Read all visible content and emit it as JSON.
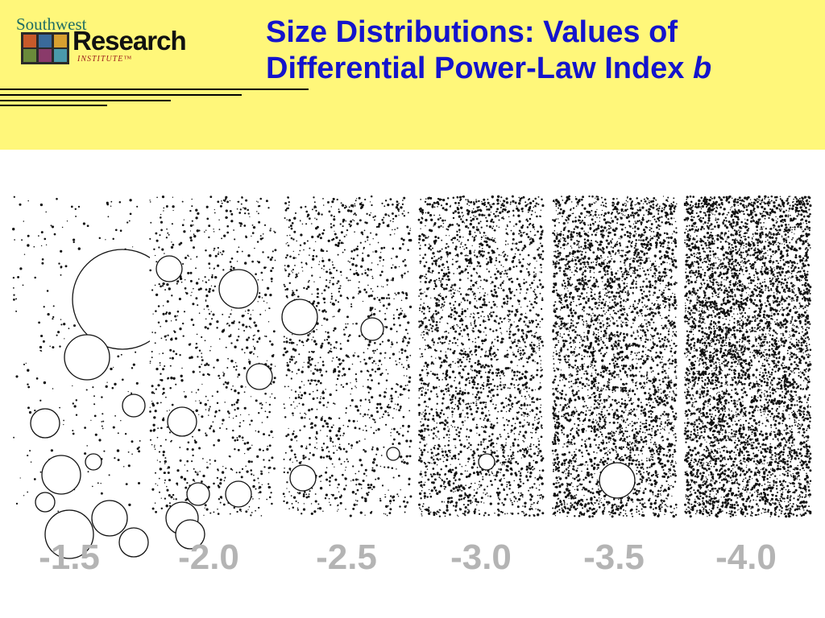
{
  "logo": {
    "southwest": "Southwest",
    "research": "Research",
    "institute": "INSTITUTE™"
  },
  "title": {
    "line1": "Size Distributions:  Values of",
    "line2": "Differential Power-Law Index",
    "variable": "b"
  },
  "panels": [
    {
      "label": "-1.5",
      "b": -1.5
    },
    {
      "label": "-2.0",
      "b": -2.0
    },
    {
      "label": "-2.5",
      "b": -2.5
    },
    {
      "label": "-3.0",
      "b": -3.0
    },
    {
      "label": "-3.5",
      "b": -3.5
    },
    {
      "label": "-4.0",
      "b": -4.0
    }
  ],
  "colors": {
    "header_background": "#fff77a",
    "title": "#1414cc",
    "labels": "#b4b4b4"
  }
}
